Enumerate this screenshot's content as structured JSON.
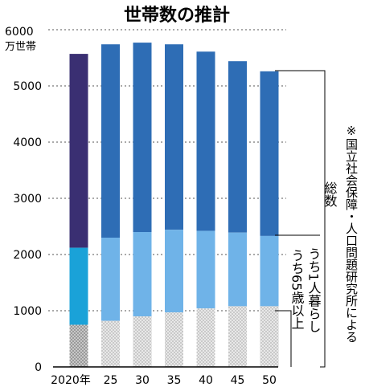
{
  "chart_data": {
    "type": "bar",
    "title": "世帯数の推計",
    "y_unit_lines": [
      "6000",
      "万世帯"
    ],
    "ylim": [
      0,
      6000
    ],
    "y_ticks": [
      0,
      1000,
      2000,
      3000,
      4000,
      5000
    ],
    "categories": [
      "2020年",
      "25",
      "30",
      "35",
      "40",
      "45",
      "50"
    ],
    "series": [
      {
        "name": "総数",
        "values": [
          5570,
          5740,
          5770,
          5740,
          5610,
          5440,
          5260
        ]
      },
      {
        "name": "うち1人暮らし",
        "values": [
          2120,
          2300,
          2400,
          2440,
          2420,
          2390,
          2330
        ]
      },
      {
        "name": "うち65歳以上",
        "values": [
          750,
          820,
          900,
          970,
          1040,
          1080,
          1080
        ]
      }
    ],
    "colors": {
      "total": "#2e6db5",
      "single": "#6fb3e8",
      "elderly_pattern": "#bfbfbf",
      "total_2020": "#3a2f72",
      "single_2020": "#1aa2d8",
      "elderly_2020": "#9a9a9a"
    },
    "grid": "dotted",
    "source_note": "※国立社会保障・人口問題研究所による"
  }
}
